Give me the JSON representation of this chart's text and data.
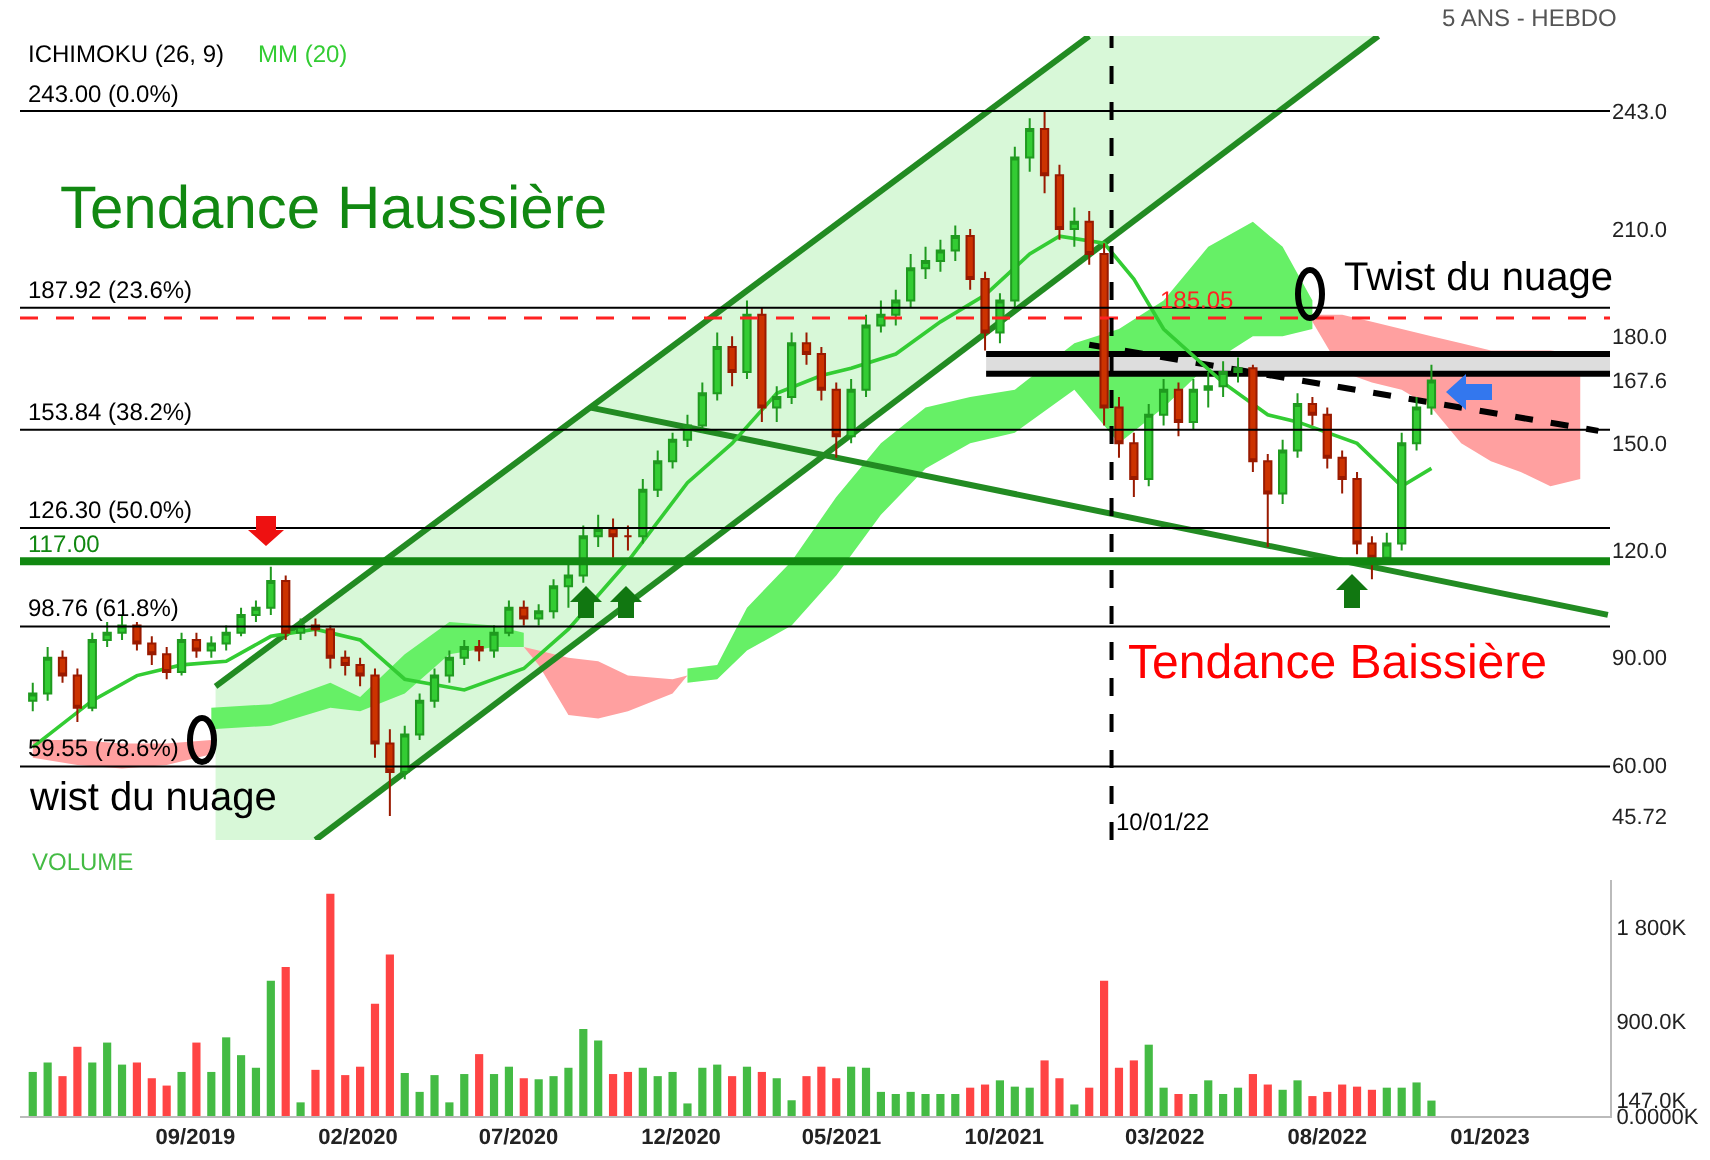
{
  "chart_data": [
    {
      "type": "candlestick",
      "tick_labels": "y",
      "xlim": [
        "2019-03-20",
        "2023-04-24"
      ],
      "ylim": [
        39,
        264
      ],
      "yticks": [
        {
          "value": 45.72,
          "label": "45.72"
        },
        {
          "value": 60,
          "label": "60.00"
        },
        {
          "value": 90,
          "label": "90.00"
        },
        {
          "value": 120,
          "label": "120.0"
        },
        {
          "value": 150,
          "label": "150.0"
        },
        {
          "value": 167.6,
          "label": "167.6"
        },
        {
          "value": 180,
          "label": "180.0"
        },
        {
          "value": 210,
          "label": "210.0"
        },
        {
          "value": 243,
          "label": "243.0"
        }
      ],
      "x": [
        "2019-04-01",
        "2019-04-15",
        "2019-04-29",
        "2019-05-13",
        "2019-05-27",
        "2019-06-10",
        "2019-06-24",
        "2019-07-08",
        "2019-07-22",
        "2019-08-05",
        "2019-08-19",
        "2019-09-02",
        "2019-09-16",
        "2019-09-30",
        "2019-10-14",
        "2019-10-28",
        "2019-11-11",
        "2019-11-25",
        "2019-12-09",
        "2019-12-23",
        "2020-01-06",
        "2020-01-20",
        "2020-02-03",
        "2020-02-17",
        "2020-03-02",
        "2020-03-16",
        "2020-03-30",
        "2020-04-13",
        "2020-04-27",
        "2020-05-11",
        "2020-05-25",
        "2020-06-08",
        "2020-06-22",
        "2020-07-06",
        "2020-07-20",
        "2020-08-03",
        "2020-08-17",
        "2020-08-31",
        "2020-09-14",
        "2020-09-28",
        "2020-10-12",
        "2020-10-26",
        "2020-11-09",
        "2020-11-23",
        "2020-12-07",
        "2020-12-21",
        "2021-01-04",
        "2021-01-18",
        "2021-02-01",
        "2021-02-15",
        "2021-03-01",
        "2021-03-15",
        "2021-03-29",
        "2021-04-12",
        "2021-04-26",
        "2021-05-10",
        "2021-05-24",
        "2021-06-07",
        "2021-06-21",
        "2021-07-05",
        "2021-07-19",
        "2021-08-02",
        "2021-08-16",
        "2021-08-30",
        "2021-09-13",
        "2021-09-27",
        "2021-10-11",
        "2021-10-25",
        "2021-11-08",
        "2021-11-22",
        "2021-12-06",
        "2021-12-20",
        "2022-01-03",
        "2022-01-17",
        "2022-01-31",
        "2022-02-14",
        "2022-02-28",
        "2022-03-14",
        "2022-03-28",
        "2022-04-11",
        "2022-04-25",
        "2022-05-09",
        "2022-05-23",
        "2022-06-06",
        "2022-06-20",
        "2022-07-04",
        "2022-07-18",
        "2022-08-01",
        "2022-08-15",
        "2022-08-29",
        "2022-09-12",
        "2022-09-26",
        "2022-10-10",
        "2022-10-24",
        "2022-11-07"
      ],
      "ohlc": [
        [
          78,
          83,
          75,
          80
        ],
        [
          80,
          93,
          78,
          90
        ],
        [
          90,
          92,
          83,
          85
        ],
        [
          85,
          87,
          72,
          76
        ],
        [
          76,
          97,
          75,
          95
        ],
        [
          95,
          100,
          93,
          97
        ],
        [
          97,
          102,
          95,
          99
        ],
        [
          99,
          100,
          92,
          94
        ],
        [
          94,
          96,
          88,
          91
        ],
        [
          91,
          93,
          84,
          86
        ],
        [
          86,
          97,
          85,
          95
        ],
        [
          95,
          97,
          90,
          92
        ],
        [
          92,
          96,
          90,
          94
        ],
        [
          94,
          99,
          92,
          97
        ],
        [
          97,
          104,
          96,
          102
        ],
        [
          102,
          106,
          100,
          104
        ],
        [
          104,
          115.5,
          102,
          111.5
        ],
        [
          111.5,
          113,
          95,
          97
        ],
        [
          97,
          101,
          95,
          99
        ],
        [
          99,
          101,
          96,
          98
        ],
        [
          98,
          99,
          87,
          90
        ],
        [
          90,
          92,
          85,
          88
        ],
        [
          88,
          90,
          82,
          85
        ],
        [
          85,
          87,
          62,
          66
        ],
        [
          66,
          70,
          45.72,
          58
        ],
        [
          58,
          71,
          56,
          68.5
        ],
        [
          68.5,
          80,
          67,
          78
        ],
        [
          78,
          87,
          76,
          85
        ],
        [
          85,
          92,
          83,
          90
        ],
        [
          90,
          95,
          88,
          93
        ],
        [
          93,
          95,
          89,
          92
        ],
        [
          92,
          99,
          90,
          97
        ],
        [
          97,
          106,
          96,
          104
        ],
        [
          104,
          106,
          99,
          101
        ],
        [
          101,
          105,
          99,
          103
        ],
        [
          103,
          112,
          101,
          110
        ],
        [
          110,
          116,
          104,
          113
        ],
        [
          113,
          127,
          111,
          124
        ],
        [
          124,
          130,
          121,
          126
        ],
        [
          126,
          129,
          118,
          124
        ],
        [
          124,
          127,
          120,
          124
        ],
        [
          124,
          140,
          122,
          137
        ],
        [
          137,
          148,
          135,
          145
        ],
        [
          145,
          153,
          143,
          151
        ],
        [
          151,
          158,
          149,
          155
        ],
        [
          155,
          167,
          153,
          164
        ],
        [
          164,
          181,
          162,
          177
        ],
        [
          177,
          180,
          166,
          170
        ],
        [
          170,
          190,
          168,
          186
        ],
        [
          186,
          188,
          156,
          160
        ],
        [
          160,
          166,
          156,
          163
        ],
        [
          163,
          181,
          161,
          178
        ],
        [
          178,
          181,
          172,
          175
        ],
        [
          175,
          177,
          162,
          165
        ],
        [
          165,
          167,
          146,
          152
        ],
        [
          152,
          168,
          150,
          165
        ],
        [
          165,
          186,
          163,
          183
        ],
        [
          183,
          190,
          181,
          186
        ],
        [
          186,
          193,
          183,
          190
        ],
        [
          190,
          203,
          188,
          199
        ],
        [
          199,
          205,
          196,
          201
        ],
        [
          201,
          207,
          198,
          204
        ],
        [
          204,
          211,
          201,
          208
        ],
        [
          208,
          210,
          193,
          196
        ],
        [
          196,
          198,
          176,
          181
        ],
        [
          181,
          192,
          178,
          190
        ],
        [
          190,
          233,
          188,
          230
        ],
        [
          230,
          241,
          226,
          238
        ],
        [
          238,
          243,
          220,
          225
        ],
        [
          225,
          228,
          207,
          210
        ],
        [
          210,
          216,
          205,
          212
        ],
        [
          212,
          215,
          200,
          203
        ],
        [
          203,
          206,
          155,
          160
        ],
        [
          160,
          163,
          146,
          150
        ],
        [
          150,
          153,
          135,
          140
        ],
        [
          140,
          161,
          138,
          158
        ],
        [
          158,
          168,
          155,
          165
        ],
        [
          165,
          167,
          152,
          156
        ],
        [
          156,
          168,
          154,
          165
        ],
        [
          165,
          170,
          160,
          166
        ],
        [
          166,
          173,
          163,
          170
        ],
        [
          170,
          174,
          167,
          171
        ],
        [
          171,
          172,
          142,
          145
        ],
        [
          145,
          147,
          121,
          136
        ],
        [
          136,
          151,
          133,
          148
        ],
        [
          148,
          164,
          146,
          161
        ],
        [
          161,
          163,
          155,
          158
        ],
        [
          158,
          160,
          143,
          146
        ],
        [
          146,
          148,
          136,
          140
        ],
        [
          140,
          142,
          119,
          122
        ],
        [
          122,
          124,
          112,
          118
        ],
        [
          118,
          125,
          116,
          122
        ],
        [
          122,
          153,
          120,
          150
        ],
        [
          150,
          163,
          148,
          160
        ],
        [
          160,
          172,
          158,
          167.6
        ]
      ],
      "series": [
        {
          "type": "line",
          "color": "#d8f8d8",
          "x": [
            "2019-09-20",
            "2019-12-23",
            "2021-12-20",
            "2022-09-18"
          ],
          "values": [
            null,
            null,
            null,
            null
          ],
          "upper": [
            82,
            103,
            264,
            264
          ],
          "lower": [
            39,
            39,
            202,
            264
          ]
        },
        {
          "type": "line",
          "color": "#ffa0a0",
          "x": [
            "2019-04-01",
            "2019-05-13",
            "2019-06-24",
            "2019-08-05",
            "2019-09-16"
          ],
          "values": [
            null,
            null,
            null,
            null,
            null
          ],
          "upper": [
            67,
            67,
            66,
            66,
            67
          ],
          "lower": [
            62,
            60,
            59,
            60,
            63
          ]
        },
        {
          "type": "line",
          "color": "#66f066",
          "x": [
            "2019-09-16",
            "2019-11-11",
            "2020-01-06",
            "2020-02-03",
            "2020-03-16",
            "2020-04-27",
            "2020-06-08",
            "2020-07-06"
          ],
          "values": [
            null,
            null,
            null,
            null,
            null,
            null,
            null,
            null
          ],
          "upper": [
            76,
            77,
            83,
            79,
            91,
            100,
            99,
            97
          ],
          "lower": [
            70,
            71,
            76,
            75,
            80,
            91,
            93,
            93
          ]
        },
        {
          "type": "line",
          "color": "#ffa0a0",
          "x": [
            "2020-07-06",
            "2020-07-20",
            "2020-08-17",
            "2020-09-14",
            "2020-10-12",
            "2020-11-23",
            "2020-12-07"
          ],
          "values": [
            null,
            null,
            null,
            null,
            null,
            null,
            null
          ],
          "upper": [
            93,
            92,
            90,
            89,
            85,
            84,
            85
          ],
          "lower": [
            93,
            88,
            74,
            73,
            75,
            80,
            85
          ]
        },
        {
          "type": "line",
          "color": "#66f066",
          "x": [
            "2020-12-07",
            "2021-01-04",
            "2021-02-01",
            "2021-03-15",
            "2021-04-26",
            "2021-06-07",
            "2021-07-19",
            "2021-08-30",
            "2021-10-11",
            "2021-12-06",
            "2022-01-17",
            "2022-02-28",
            "2022-04-11",
            "2022-05-23",
            "2022-06-20",
            "2022-07-18"
          ],
          "values": [
            null,
            null,
            null,
            null,
            null,
            null,
            null,
            null,
            null,
            null,
            null,
            null,
            null,
            null,
            null,
            null
          ],
          "upper": [
            87,
            88,
            104,
            117,
            135,
            150,
            160,
            163,
            165,
            178,
            182,
            190,
            205,
            212,
            205,
            190
          ],
          "lower": [
            83,
            84,
            92,
            99,
            113,
            130,
            143,
            150,
            153,
            165,
            150,
            160,
            172,
            180,
            180,
            182
          ]
        },
        {
          "type": "line",
          "color": "#ffa0a0",
          "x": [
            "2022-07-18",
            "2022-08-15",
            "2022-09-12",
            "2022-10-10",
            "2022-11-07",
            "2022-12-05",
            "2023-01-02",
            "2023-01-30",
            "2023-02-27",
            "2023-03-27"
          ],
          "values": [
            null,
            null,
            null,
            null,
            null,
            null,
            null,
            null,
            null,
            null
          ],
          "upper": [
            186,
            186,
            184,
            182,
            180,
            178,
            176,
            176,
            176,
            175
          ],
          "lower": [
            184,
            170,
            167,
            165,
            160,
            150,
            145,
            142,
            138,
            140
          ]
        },
        {
          "type": "line",
          "color": "#dddddd",
          "x": [
            "2021-09-14",
            "2023-04-24"
          ],
          "values": [
            null,
            null
          ],
          "upper": [
            175,
            175
          ],
          "lower": [
            169.5,
            169.5
          ]
        },
        {
          "type": "line",
          "color": "#228b22",
          "x": [
            "2019-09-20",
            "2021-12-20"
          ],
          "values": [
            82,
            264
          ]
        },
        {
          "type": "line",
          "color": "#228b22",
          "x": [
            "2019-12-23",
            "2022-09-18"
          ],
          "values": [
            39,
            264
          ]
        },
        {
          "type": "line",
          "color": "#228b22",
          "x": [
            "2020-09-07",
            "2023-04-22"
          ],
          "values": [
            160,
            102
          ]
        },
        {
          "type": "line",
          "color": "#000000",
          "x": [
            "2021-09-14",
            "2023-04-24"
          ],
          "values": [
            175,
            175
          ]
        },
        {
          "type": "line",
          "color": "#000000",
          "x": [
            "2021-09-14",
            "2023-04-24"
          ],
          "values": [
            169.5,
            169.5
          ]
        },
        {
          "type": "line",
          "color": "#000000",
          "line_style": "dashed",
          "x": [
            "2021-12-20",
            "2023-04-13"
          ],
          "values": [
            177.6,
            153.5
          ]
        },
        {
          "type": "line",
          "name": "MM (20)",
          "color": "#33cc33",
          "x": [
            "2019-04-01",
            "2019-05-27",
            "2019-07-08",
            "2019-08-19",
            "2019-09-30",
            "2019-11-11",
            "2019-12-23",
            "2020-02-03",
            "2020-03-16",
            "2020-05-11",
            "2020-07-06",
            "2020-08-17",
            "2020-10-12",
            "2020-12-07",
            "2021-01-18",
            "2021-03-01",
            "2021-04-12",
            "2021-05-10",
            "2021-06-21",
            "2021-08-02",
            "2021-09-13",
            "2021-10-25",
            "2021-11-22",
            "2022-01-03",
            "2022-01-31",
            "2022-02-28",
            "2022-04-25",
            "2022-06-06",
            "2022-07-04",
            "2022-08-29",
            "2022-10-10",
            "2022-11-07"
          ],
          "values": [
            65,
            78,
            85,
            88,
            89,
            96,
            98,
            95,
            84,
            81,
            87,
            98,
            117,
            139,
            150,
            164,
            169,
            171,
            175,
            184,
            191.5,
            203,
            208,
            206,
            196,
            182,
            167,
            158,
            156,
            150,
            138,
            143
          ]
        }
      ],
      "ref_lines": [
        {
          "axis": "y",
          "value": 243,
          "label": "243.00 (0.0%)"
        },
        {
          "axis": "y",
          "value": 187.92,
          "label": "187.92 (23.6%)"
        },
        {
          "axis": "y",
          "value": 153.84,
          "label": "153.84 (38.2%)"
        },
        {
          "axis": "y",
          "value": 126.3,
          "label": "126.30 (50.0%)"
        },
        {
          "axis": "y",
          "value": 98.76,
          "label": "98.76 (61.8%)"
        },
        {
          "axis": "y",
          "value": 59.55,
          "label": "59.55 (78.6%)"
        },
        {
          "axis": "y",
          "value": 117,
          "label": "117.00",
          "color": "#118811"
        },
        {
          "axis": "y",
          "value": 185.05,
          "label": "185.05",
          "color": "#ff2222",
          "line_style": "dashed"
        },
        {
          "axis": "x",
          "value": "2022-01-10",
          "label": "10/01/22",
          "line_style": "dashed"
        }
      ],
      "annotations": [
        "ICHIMOKU (26, 9)",
        "5 ANS - HEBDO",
        "Tendance Haussière",
        "Tendance Baissière",
        "Twist du nuage",
        "wist du nuage"
      ]
    },
    {
      "type": "bar",
      "title": "VOLUME",
      "xlim": [
        "2019-03-20",
        "2023-04-24"
      ],
      "ylim": [
        0,
        2250
      ],
      "xticks": [
        {
          "value": "2019-09-01",
          "label": "09/2019"
        },
        {
          "value": "2020-02-01",
          "label": "02/2020"
        },
        {
          "value": "2020-07-01",
          "label": "07/2020"
        },
        {
          "value": "2020-12-01",
          "label": "12/2020"
        },
        {
          "value": "2021-05-01",
          "label": "05/2021"
        },
        {
          "value": "2021-10-01",
          "label": "10/2021"
        },
        {
          "value": "2022-03-01",
          "label": "03/2022"
        },
        {
          "value": "2022-08-01",
          "label": "08/2022"
        },
        {
          "value": "2023-01-01",
          "label": "01/2023"
        }
      ],
      "yticks": [
        {
          "value": 0,
          "label": "0.0000K"
        },
        {
          "value": 147,
          "label": "147.0K"
        },
        {
          "value": 900,
          "label": "900.0K"
        },
        {
          "value": 1800,
          "label": "1 800K"
        }
      ],
      "x": [
        "2019-04-01",
        "2019-04-15",
        "2019-04-29",
        "2019-05-13",
        "2019-05-27",
        "2019-06-10",
        "2019-06-24",
        "2019-07-08",
        "2019-07-22",
        "2019-08-05",
        "2019-08-19",
        "2019-09-02",
        "2019-09-16",
        "2019-09-30",
        "2019-10-14",
        "2019-10-28",
        "2019-11-11",
        "2019-11-25",
        "2019-12-09",
        "2019-12-23",
        "2020-01-06",
        "2020-01-20",
        "2020-02-03",
        "2020-02-17",
        "2020-03-02",
        "2020-03-16",
        "2020-03-30",
        "2020-04-13",
        "2020-04-27",
        "2020-05-11",
        "2020-05-25",
        "2020-06-08",
        "2020-06-22",
        "2020-07-06",
        "2020-07-20",
        "2020-08-03",
        "2020-08-17",
        "2020-08-31",
        "2020-09-14",
        "2020-09-28",
        "2020-10-12",
        "2020-10-26",
        "2020-11-09",
        "2020-11-23",
        "2020-12-07",
        "2020-12-21",
        "2021-01-04",
        "2021-01-18",
        "2021-02-01",
        "2021-02-15",
        "2021-03-01",
        "2021-03-15",
        "2021-03-29",
        "2021-04-12",
        "2021-04-26",
        "2021-05-10",
        "2021-05-24",
        "2021-06-07",
        "2021-06-21",
        "2021-07-05",
        "2021-07-19",
        "2021-08-02",
        "2021-08-16",
        "2021-08-30",
        "2021-09-13",
        "2021-09-27",
        "2021-10-11",
        "2021-10-25",
        "2021-11-08",
        "2021-11-22",
        "2021-12-06",
        "2021-12-20",
        "2022-01-03",
        "2022-01-17",
        "2022-01-31",
        "2022-02-14",
        "2022-02-28",
        "2022-03-14",
        "2022-03-28",
        "2022-04-11",
        "2022-04-25",
        "2022-05-09",
        "2022-05-23",
        "2022-06-06",
        "2022-06-20",
        "2022-07-04",
        "2022-07-18",
        "2022-08-01",
        "2022-08-15",
        "2022-08-29",
        "2022-09-12",
        "2022-09-26",
        "2022-10-10",
        "2022-10-24",
        "2022-11-07"
      ],
      "values": [
        420,
        510,
        380,
        660,
        510,
        700,
        490,
        510,
        360,
        290,
        420,
        700,
        420,
        750,
        580,
        460,
        1290,
        1420,
        130,
        440,
        2120,
        390,
        470,
        1070,
        1540,
        410,
        230,
        390,
        130,
        400,
        590,
        400,
        470,
        360,
        350,
        380,
        460,
        830,
        720,
        400,
        420,
        460,
        380,
        420,
        120,
        460,
        490,
        380,
        470,
        420,
        360,
        150,
        380,
        470,
        360,
        470,
        460,
        230,
        210,
        230,
        210,
        210,
        210,
        270,
        300,
        340,
        280,
        270,
        530,
        360,
        110,
        270,
        1290,
        460,
        530,
        680,
        270,
        210,
        210,
        340,
        210,
        270,
        400,
        300,
        250,
        340,
        190,
        230,
        300,
        280,
        250,
        270,
        270,
        320,
        147
      ],
      "colors": [
        "#44bb44",
        "#44bb44",
        "#ff4444",
        "#ff4444",
        "#44bb44",
        "#44bb44",
        "#44bb44",
        "#ff4444",
        "#ff4444",
        "#ff4444",
        "#44bb44",
        "#ff4444",
        "#44bb44",
        "#44bb44",
        "#44bb44",
        "#44bb44",
        "#44bb44",
        "#ff4444",
        "#44bb44",
        "#ff4444",
        "#ff4444",
        "#ff4444",
        "#ff4444",
        "#ff4444",
        "#ff4444",
        "#44bb44",
        "#44bb44",
        "#44bb44",
        "#44bb44",
        "#44bb44",
        "#ff4444",
        "#44bb44",
        "#44bb44",
        "#ff4444",
        "#44bb44",
        "#44bb44",
        "#44bb44",
        "#44bb44",
        "#44bb44",
        "#ff4444",
        "#ff4444",
        "#44bb44",
        "#44bb44",
        "#44bb44",
        "#44bb44",
        "#44bb44",
        "#44bb44",
        "#ff4444",
        "#44bb44",
        "#ff4444",
        "#44bb44",
        "#44bb44",
        "#ff4444",
        "#ff4444",
        "#ff4444",
        "#44bb44",
        "#44bb44",
        "#44bb44",
        "#44bb44",
        "#44bb44",
        "#44bb44",
        "#44bb44",
        "#44bb44",
        "#ff4444",
        "#ff4444",
        "#44bb44",
        "#44bb44",
        "#44bb44",
        "#ff4444",
        "#ff4444",
        "#44bb44",
        "#ff4444",
        "#ff4444",
        "#ff4444",
        "#ff4444",
        "#44bb44",
        "#44bb44",
        "#ff4444",
        "#44bb44",
        "#44bb44",
        "#44bb44",
        "#44bb44",
        "#ff4444",
        "#ff4444",
        "#44bb44",
        "#44bb44",
        "#ff4444",
        "#ff4444",
        "#ff4444",
        "#ff4444",
        "#ff4444",
        "#44bb44",
        "#44bb44",
        "#44bb44",
        "#44bb44"
      ]
    }
  ]
}
